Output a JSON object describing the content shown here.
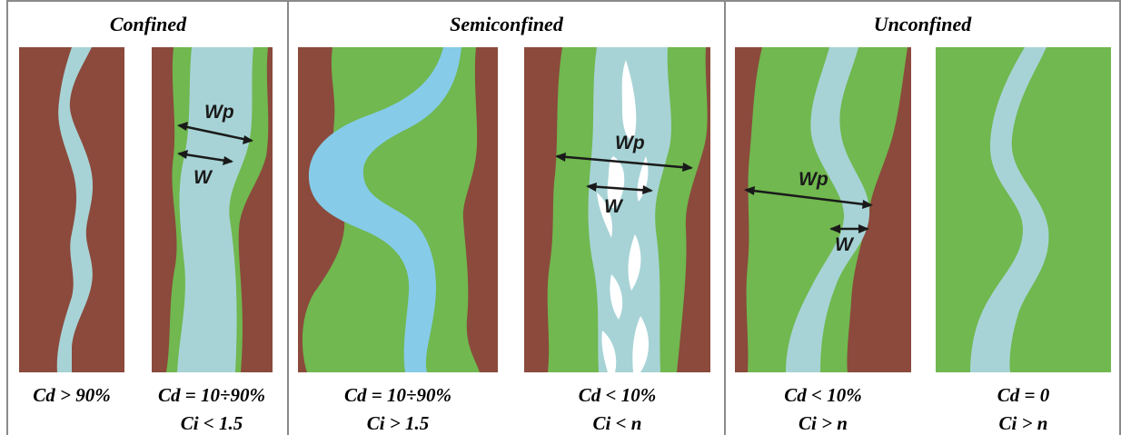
{
  "columns": [
    {
      "title": "Confined"
    },
    {
      "title": "Semiconfined"
    },
    {
      "title": "Unconfined"
    }
  ],
  "captions": {
    "p1": {
      "cd": "Cd > 90%",
      "ci": ""
    },
    "p2": {
      "cd": "Cd = 10÷90%",
      "ci": "Ci < 1.5"
    },
    "p3": {
      "cd": "Cd = 10÷90%",
      "ci": "Ci > 1.5"
    },
    "p4": {
      "cd": "Cd < 10%",
      "ci": "Ci < n"
    },
    "p5": {
      "cd": "Cd < 10%",
      "ci": "Ci > n"
    },
    "p6": {
      "cd": "Cd = 0",
      "ci": "Ci > n"
    }
  },
  "labels": {
    "wp": "Wp",
    "w": "W"
  },
  "colors": {
    "valley_wall": "#8b4a3c",
    "floodplain": "#70b84f",
    "channel_light": "#a7d3d6",
    "channel_blue": "#86cbe8",
    "bar": "#ffffff",
    "frame": "#8a8a8a"
  }
}
